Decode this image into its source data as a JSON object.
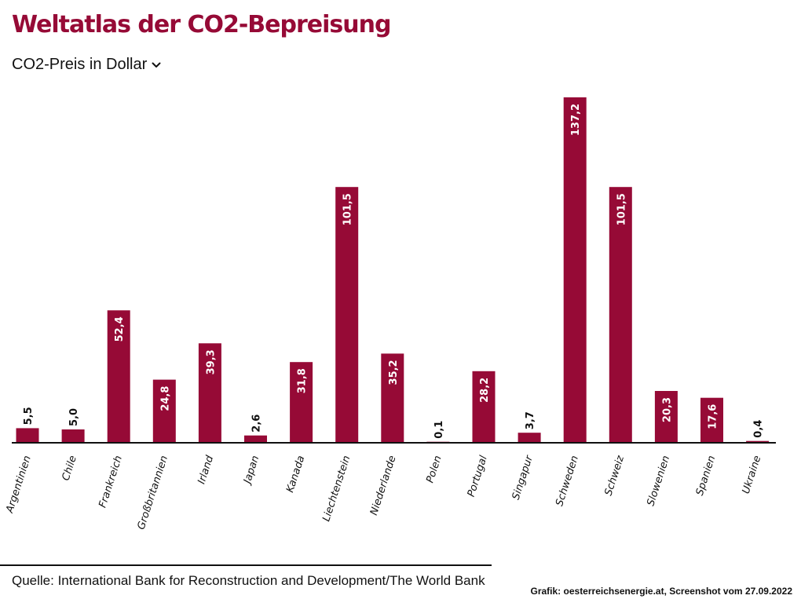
{
  "header": {
    "title": "Weltatlas der CO2-Bepreisung",
    "metric_select": {
      "selected": "CO2-Preis in Dollar",
      "icon": "chevron-down-icon"
    }
  },
  "footer": {
    "source": "Quelle: International Bank for Reconstruction and Development/The World Bank",
    "credit": "Grafik: oesterreichsenergie.at, Screenshot vom 27.09.2022"
  },
  "colors": {
    "bar": "#960a36",
    "title": "#960a36",
    "label_inside": "#ffffff",
    "label_outside": "#111111",
    "axis": "#111111"
  },
  "chart_data": {
    "type": "bar",
    "title": "Weltatlas der CO2-Bepreisung",
    "ylabel": "CO2-Preis in Dollar",
    "categories": [
      "Argentinien",
      "Chile",
      "Frankreich",
      "Großbritannien",
      "Irland",
      "Japan",
      "Kanada",
      "Liechtenstein",
      "Niederlande",
      "Polen",
      "Portugal",
      "Singapur",
      "Schweden",
      "Schweiz",
      "Slowenien",
      "Spanien",
      "Ukraine"
    ],
    "values": [
      5.5,
      5.0,
      52.4,
      24.8,
      39.3,
      2.6,
      31.8,
      101.5,
      35.2,
      0.1,
      28.2,
      3.7,
      137.2,
      101.5,
      20.3,
      17.6,
      0.4
    ],
    "value_labels": [
      "5,5",
      "5,0",
      "52,4",
      "24,8",
      "39,3",
      "2,6",
      "31,8",
      "101,5",
      "35,2",
      "0,1",
      "28,2",
      "3,7",
      "137,2",
      "101,5",
      "20,3",
      "17,6",
      "0,4"
    ],
    "ylim": [
      0,
      137.2
    ],
    "grid": false,
    "legend": "none",
    "data_labels": "rotated, inside tall bars, above short bars"
  }
}
